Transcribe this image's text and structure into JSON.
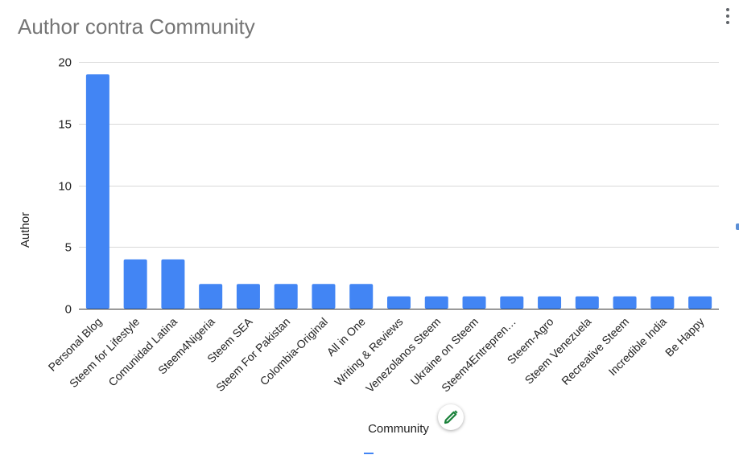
{
  "chart_data": {
    "type": "bar",
    "title": "Author contra Community",
    "xlabel": "Community",
    "ylabel": "Author",
    "categories": [
      "Personal Blog",
      "Steem for Lifestyle",
      "Comunidad Latina",
      "Steem4Nigeria",
      "Steem SEA",
      "Steem For Pakistan",
      "Colombia-Original",
      "All in One",
      "Writing & Reviews",
      "Venezolanos Steem",
      "Ukraine on Steem",
      "Steem4Entrepren…",
      "Steem-Agro",
      "Steem Venezuela",
      "Recreative Steem",
      "Incredible India",
      "Be Happy"
    ],
    "values": [
      19,
      4,
      4,
      2,
      2,
      2,
      2,
      2,
      1,
      1,
      1,
      1,
      1,
      1,
      1,
      1,
      1
    ],
    "ylim": [
      0,
      20
    ],
    "yticks": [
      0,
      5,
      10,
      15,
      20
    ],
    "grid": true,
    "legend": "none",
    "bar_color": "#4285f4"
  },
  "icons": {
    "menu": "more-vert-icon",
    "edit": "pencil-icon"
  },
  "colors": {
    "edit_icon": "#188038",
    "gridline": "#d9d9d9",
    "axis": "#333333"
  }
}
